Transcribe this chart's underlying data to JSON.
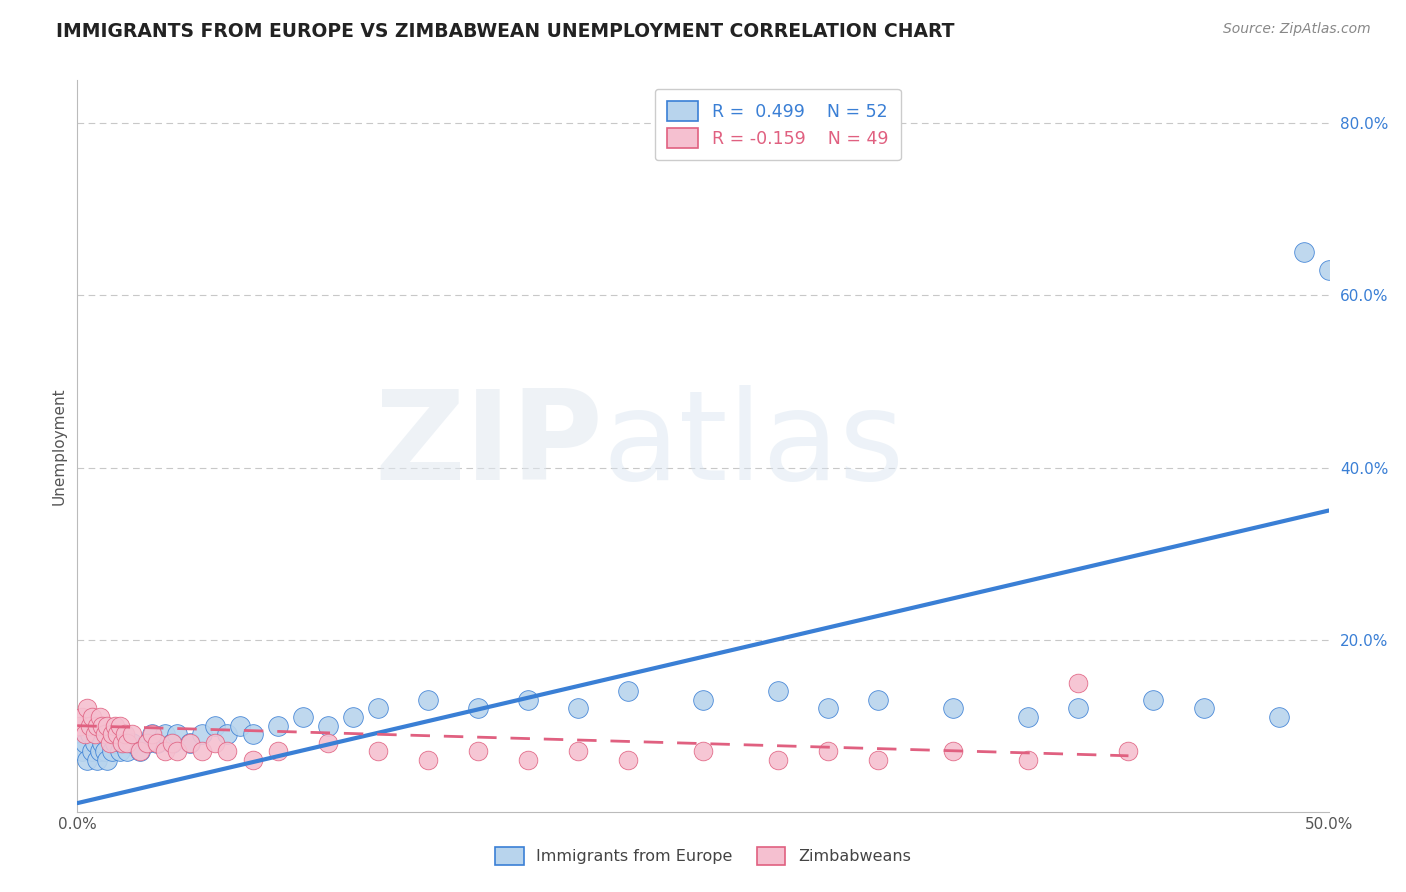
{
  "title": "IMMIGRANTS FROM EUROPE VS ZIMBABWEAN UNEMPLOYMENT CORRELATION CHART",
  "source": "Source: ZipAtlas.com",
  "ylabel": "Unemployment",
  "legend_blue_r": "R =  0.499",
  "legend_blue_n": "N = 52",
  "legend_pink_r": "R = -0.159",
  "legend_pink_n": "N = 49",
  "blue_color": "#b8d4ed",
  "blue_line_color": "#3a7fd5",
  "pink_color": "#f5c0d0",
  "pink_line_color": "#e06080",
  "blue_scatter_x": [
    0.002,
    0.003,
    0.004,
    0.005,
    0.006,
    0.007,
    0.008,
    0.009,
    0.01,
    0.011,
    0.012,
    0.014,
    0.015,
    0.017,
    0.018,
    0.02,
    0.022,
    0.025,
    0.028,
    0.03,
    0.032,
    0.035,
    0.038,
    0.04,
    0.045,
    0.05,
    0.055,
    0.06,
    0.065,
    0.07,
    0.08,
    0.09,
    0.1,
    0.11,
    0.12,
    0.14,
    0.16,
    0.18,
    0.2,
    0.22,
    0.25,
    0.28,
    0.3,
    0.32,
    0.35,
    0.38,
    0.4,
    0.43,
    0.45,
    0.48,
    0.49,
    0.5
  ],
  "blue_scatter_y": [
    0.07,
    0.08,
    0.06,
    0.09,
    0.07,
    0.08,
    0.06,
    0.07,
    0.08,
    0.07,
    0.06,
    0.07,
    0.08,
    0.07,
    0.08,
    0.07,
    0.08,
    0.07,
    0.08,
    0.09,
    0.08,
    0.09,
    0.08,
    0.09,
    0.08,
    0.09,
    0.1,
    0.09,
    0.1,
    0.09,
    0.1,
    0.11,
    0.1,
    0.11,
    0.12,
    0.13,
    0.12,
    0.13,
    0.12,
    0.14,
    0.13,
    0.14,
    0.12,
    0.13,
    0.12,
    0.11,
    0.12,
    0.13,
    0.12,
    0.11,
    0.65,
    0.63
  ],
  "pink_scatter_x": [
    0.001,
    0.002,
    0.003,
    0.004,
    0.005,
    0.006,
    0.007,
    0.008,
    0.009,
    0.01,
    0.011,
    0.012,
    0.013,
    0.014,
    0.015,
    0.016,
    0.017,
    0.018,
    0.019,
    0.02,
    0.022,
    0.025,
    0.028,
    0.03,
    0.032,
    0.035,
    0.038,
    0.04,
    0.045,
    0.05,
    0.055,
    0.06,
    0.07,
    0.08,
    0.1,
    0.12,
    0.14,
    0.16,
    0.18,
    0.2,
    0.22,
    0.25,
    0.28,
    0.3,
    0.32,
    0.35,
    0.38,
    0.4,
    0.42
  ],
  "pink_scatter_y": [
    0.1,
    0.11,
    0.09,
    0.12,
    0.1,
    0.11,
    0.09,
    0.1,
    0.11,
    0.1,
    0.09,
    0.1,
    0.08,
    0.09,
    0.1,
    0.09,
    0.1,
    0.08,
    0.09,
    0.08,
    0.09,
    0.07,
    0.08,
    0.09,
    0.08,
    0.07,
    0.08,
    0.07,
    0.08,
    0.07,
    0.08,
    0.07,
    0.06,
    0.07,
    0.08,
    0.07,
    0.06,
    0.07,
    0.06,
    0.07,
    0.06,
    0.07,
    0.06,
    0.07,
    0.06,
    0.07,
    0.06,
    0.15,
    0.07
  ],
  "blue_line_x": [
    0.0,
    0.5
  ],
  "blue_line_y": [
    0.01,
    0.35
  ],
  "pink_line_x": [
    0.0,
    0.42
  ],
  "pink_line_y": [
    0.1,
    0.065
  ],
  "xlim": [
    0.0,
    0.5
  ],
  "ylim": [
    0.0,
    0.85
  ],
  "y_ticks": [
    0.0,
    0.2,
    0.4,
    0.6,
    0.8
  ],
  "y_tick_labels": [
    "",
    "20.0%",
    "40.0%",
    "60.0%",
    "80.0%"
  ],
  "background_color": "#ffffff",
  "grid_color": "#c8c8c8"
}
